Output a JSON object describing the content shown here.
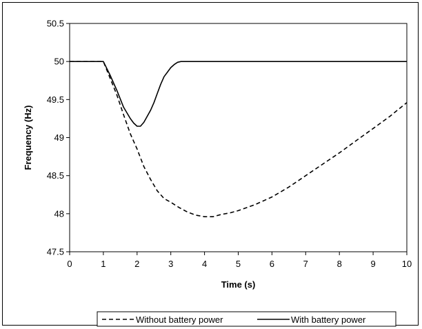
{
  "chart_data": {
    "type": "line",
    "title": "",
    "xlabel": "Time (s)",
    "ylabel": "Frequency (Hz)",
    "xlim": [
      0,
      10
    ],
    "ylim": [
      47.5,
      50.5
    ],
    "x_ticks": [
      "0",
      "1",
      "2",
      "3",
      "4",
      "5",
      "6",
      "7",
      "8",
      "9",
      "10"
    ],
    "y_ticks": [
      "47.5",
      "48",
      "48.5",
      "49",
      "49.5",
      "50",
      "50.5"
    ],
    "grid": false,
    "legend_position": "bottom",
    "series": [
      {
        "name": "Without battery power",
        "style": "dashed",
        "color": "#000000",
        "x": [
          0,
          0.5,
          1.0,
          1.2,
          1.4,
          1.6,
          1.8,
          2.0,
          2.2,
          2.4,
          2.6,
          2.8,
          3.0,
          3.25,
          3.5,
          3.75,
          4.0,
          4.25,
          4.5,
          4.75,
          5.0,
          5.5,
          6.0,
          6.5,
          7.0,
          7.5,
          8.0,
          8.5,
          9.0,
          9.5,
          10.0
        ],
        "y": [
          50.0,
          50.0,
          50.0,
          49.78,
          49.56,
          49.3,
          49.05,
          48.85,
          48.62,
          48.45,
          48.3,
          48.2,
          48.15,
          48.08,
          48.02,
          47.98,
          47.96,
          47.96,
          47.99,
          48.01,
          48.04,
          48.12,
          48.22,
          48.35,
          48.5,
          48.65,
          48.8,
          48.96,
          49.12,
          49.28,
          49.46
        ]
      },
      {
        "name": "With battery power",
        "style": "solid",
        "color": "#000000",
        "x": [
          0,
          0.5,
          1.0,
          1.2,
          1.4,
          1.6,
          1.8,
          1.9,
          2.0,
          2.1,
          2.2,
          2.3,
          2.4,
          2.5,
          2.6,
          2.7,
          2.8,
          2.9,
          3.0,
          3.1,
          3.2,
          3.3,
          3.4,
          3.5,
          4.0,
          5.0,
          6.0,
          7.0,
          8.0,
          9.0,
          10.0
        ],
        "y": [
          50.0,
          50.0,
          50.0,
          49.82,
          49.62,
          49.4,
          49.25,
          49.19,
          49.15,
          49.15,
          49.2,
          49.28,
          49.36,
          49.46,
          49.58,
          49.7,
          49.8,
          49.86,
          49.92,
          49.96,
          49.99,
          50.0,
          50.0,
          50.0,
          50.0,
          50.0,
          50.0,
          50.0,
          50.0,
          50.0,
          50.0
        ]
      }
    ]
  }
}
